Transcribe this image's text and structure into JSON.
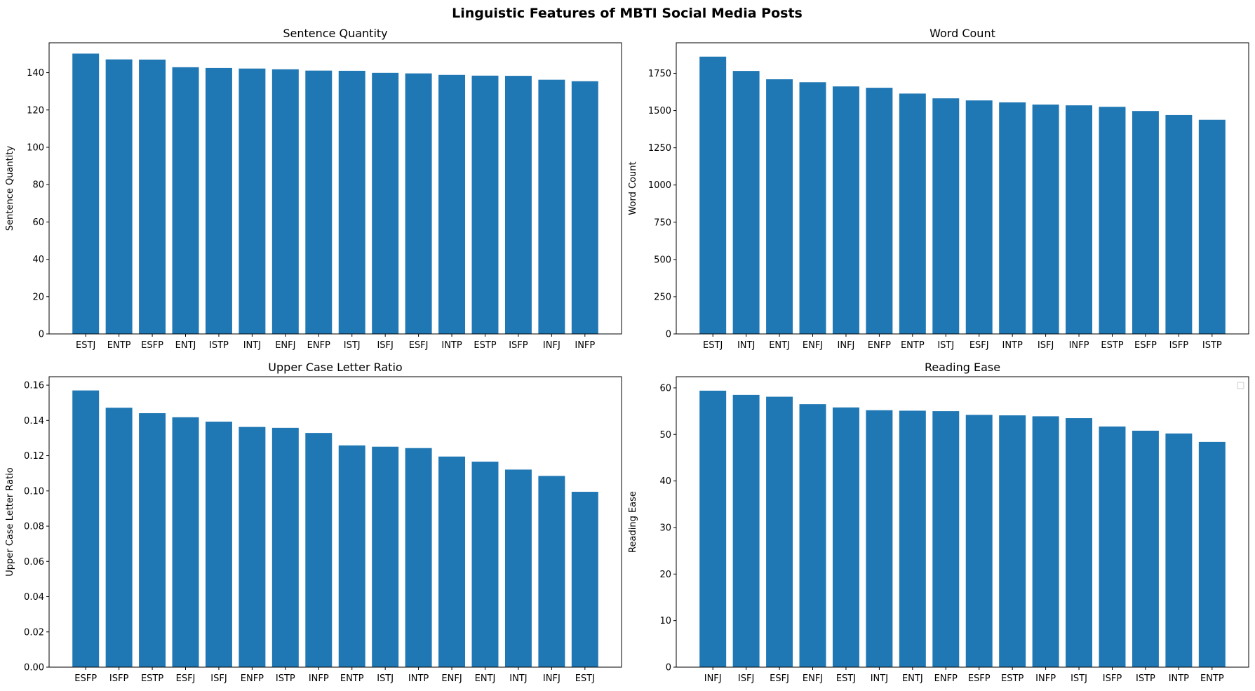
{
  "figure": {
    "title": "Linguistic Features of MBTI Social Media Posts",
    "bar_color": "#1f77b4"
  },
  "chart_data": [
    {
      "type": "bar",
      "title": "Sentence Quantity",
      "xlabel": "",
      "ylabel": "Sentence Quantity",
      "categories": [
        "ESTJ",
        "ENTP",
        "ESFP",
        "ENTJ",
        "ISTP",
        "INTJ",
        "ENFJ",
        "ENFP",
        "ISTJ",
        "ISFJ",
        "ESFJ",
        "INTP",
        "ESTP",
        "ISFP",
        "INFJ",
        "INFP"
      ],
      "values": [
        150.2,
        147.1,
        147.0,
        142.9,
        142.5,
        142.2,
        141.8,
        141.1,
        141.0,
        139.9,
        139.6,
        138.8,
        138.4,
        138.3,
        136.2,
        135.4
      ],
      "ylim": [
        0,
        156
      ],
      "yticks": [
        0,
        20,
        40,
        60,
        80,
        100,
        120,
        140
      ],
      "ytick_labels": [
        "0",
        "20",
        "40",
        "60",
        "80",
        "100",
        "120",
        "140"
      ],
      "grid": false,
      "legend": false
    },
    {
      "type": "bar",
      "title": "Word Count",
      "xlabel": "",
      "ylabel": "Word Count",
      "categories": [
        "ESTJ",
        "INTJ",
        "ENTJ",
        "ENFJ",
        "INFJ",
        "ENFP",
        "ENTP",
        "ISTJ",
        "ESFJ",
        "INTP",
        "ISFJ",
        "INFP",
        "ESTP",
        "ESFP",
        "ISFP",
        "ISTP"
      ],
      "values": [
        1862,
        1766,
        1710,
        1690,
        1662,
        1653,
        1614,
        1582,
        1568,
        1555,
        1540,
        1535,
        1525,
        1497,
        1470,
        1438
      ],
      "ylim": [
        0,
        1955
      ],
      "yticks": [
        0,
        250,
        500,
        750,
        1000,
        1250,
        1500,
        1750
      ],
      "ytick_labels": [
        "0",
        "250",
        "500",
        "750",
        "1000",
        "1250",
        "1500",
        "1750"
      ],
      "grid": false,
      "legend": false
    },
    {
      "type": "bar",
      "title": "Upper Case Letter Ratio",
      "xlabel": "",
      "ylabel": "Upper Case Letter Ratio",
      "categories": [
        "ESFP",
        "ISFP",
        "ESTP",
        "ESFJ",
        "ISFJ",
        "ENFP",
        "ISTP",
        "INFP",
        "ENTP",
        "ISTJ",
        "INTP",
        "ENFJ",
        "ENTJ",
        "INTJ",
        "INFJ",
        "ESTJ"
      ],
      "values": [
        0.157,
        0.1472,
        0.1441,
        0.1418,
        0.1393,
        0.1363,
        0.1358,
        0.1329,
        0.1258,
        0.1251,
        0.1243,
        0.1195,
        0.1166,
        0.1121,
        0.1085,
        0.0995
      ],
      "ylim": [
        0,
        0.1648
      ],
      "yticks": [
        0,
        0.02,
        0.04,
        0.06,
        0.08,
        0.1,
        0.12,
        0.14,
        0.16
      ],
      "ytick_labels": [
        "0.00",
        "0.02",
        "0.04",
        "0.06",
        "0.08",
        "0.10",
        "0.12",
        "0.14",
        "0.16"
      ],
      "grid": false,
      "legend": false
    },
    {
      "type": "bar",
      "title": "Reading Ease",
      "xlabel": "",
      "ylabel": "Reading Ease",
      "categories": [
        "INFJ",
        "ISFJ",
        "ESFJ",
        "ENFJ",
        "ESTJ",
        "INTJ",
        "ENTJ",
        "ENFP",
        "ESFP",
        "ESTP",
        "INFP",
        "ISTJ",
        "ISFP",
        "ISTP",
        "INTP",
        "ENTP"
      ],
      "values": [
        59.4,
        58.5,
        58.1,
        56.5,
        55.8,
        55.2,
        55.1,
        55.0,
        54.2,
        54.1,
        53.9,
        53.5,
        51.7,
        50.8,
        50.2,
        48.4
      ],
      "ylim": [
        0,
        62.4
      ],
      "yticks": [
        0,
        10,
        20,
        30,
        40,
        50,
        60
      ],
      "ytick_labels": [
        "0",
        "10",
        "20",
        "30",
        "40",
        "50",
        "60"
      ],
      "grid": false,
      "legend": "top-right (empty)"
    }
  ]
}
